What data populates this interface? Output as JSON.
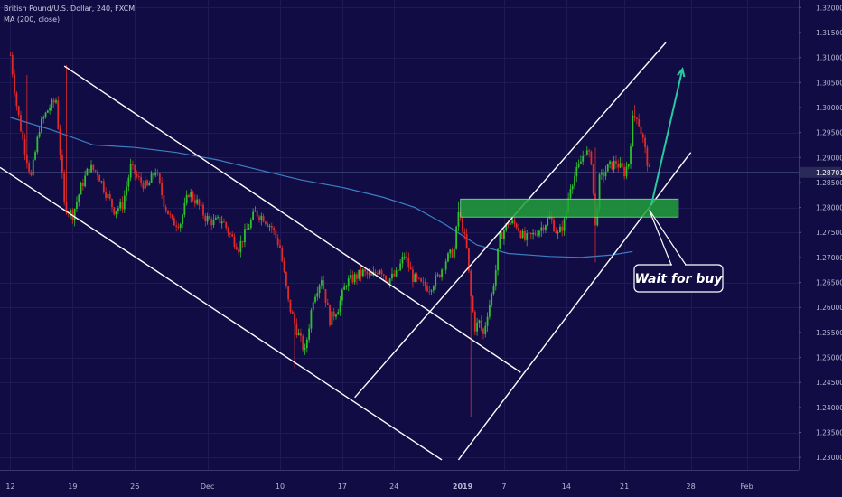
{
  "legend": {
    "symbol_line": "British Pound/U.S. Dollar, 240, FXCM",
    "indicator_line": "MA (200, close)"
  },
  "annotation": {
    "text": "Wait for buy"
  },
  "colors": {
    "background": "#120c44",
    "up_candle": "#2ec12e",
    "down_candle": "#e12a2a",
    "ma_line": "#3b7fc4",
    "trend_lines": "#ffffff",
    "zone_fill": "#22a13a",
    "arrow": "#28c9a0",
    "price_label_bg": "#2a2a5a",
    "axis_text": "#b9b8d6"
  },
  "chart_data": {
    "type": "candlestick",
    "symbol": "British Pound/U.S. Dollar",
    "timeframe": "240",
    "source": "FXCM",
    "current_price": 1.28701,
    "current_price_label": "1.28701",
    "y_axis": {
      "ticks": [
        "1.32000",
        "1.31500",
        "1.31000",
        "1.30500",
        "1.30000",
        "1.29500",
        "1.29000",
        "1.28500",
        "1.28000",
        "1.27500",
        "1.27000",
        "1.26500",
        "1.26000",
        "1.25500",
        "1.25000",
        "1.24500",
        "1.24000",
        "1.23500",
        "1.23000"
      ],
      "ylim": [
        1.2275,
        1.3215
      ]
    },
    "x_axis": {
      "ticks": [
        {
          "label": "12",
          "i": 0
        },
        {
          "label": "19",
          "i": 30
        },
        {
          "label": "26",
          "i": 60
        },
        {
          "label": "Dec",
          "i": 95
        },
        {
          "label": "10",
          "i": 130
        },
        {
          "label": "17",
          "i": 160
        },
        {
          "label": "24",
          "i": 185
        },
        {
          "label": "2019",
          "i": 218
        },
        {
          "label": "7",
          "i": 238
        },
        {
          "label": "14",
          "i": 268
        },
        {
          "label": "21",
          "i": 296
        },
        {
          "label": "28",
          "i": 328
        },
        {
          "label": "Feb",
          "i": 355
        }
      ],
      "xlim": [
        -5,
        380
      ]
    },
    "ohlc_anchors": [
      [
        0,
        1.3105
      ],
      [
        3,
        1.3005
      ],
      [
        6,
        1.2935
      ],
      [
        10,
        1.286
      ],
      [
        14,
        1.296
      ],
      [
        18,
        1.2995
      ],
      [
        22,
        1.3015
      ],
      [
        26,
        1.2805
      ],
      [
        30,
        1.2785
      ],
      [
        34,
        1.284
      ],
      [
        38,
        1.288
      ],
      [
        42,
        1.287
      ],
      [
        46,
        1.283
      ],
      [
        50,
        1.2795
      ],
      [
        54,
        1.2805
      ],
      [
        58,
        1.288
      ],
      [
        62,
        1.2855
      ],
      [
        66,
        1.284
      ],
      [
        70,
        1.2875
      ],
      [
        74,
        1.281
      ],
      [
        78,
        1.277
      ],
      [
        82,
        1.277
      ],
      [
        86,
        1.283
      ],
      [
        90,
        1.281
      ],
      [
        94,
        1.278
      ],
      [
        98,
        1.277
      ],
      [
        102,
        1.2775
      ],
      [
        106,
        1.2745
      ],
      [
        110,
        1.272
      ],
      [
        114,
        1.2755
      ],
      [
        118,
        1.279
      ],
      [
        122,
        1.278
      ],
      [
        126,
        1.276
      ],
      [
        130,
        1.272
      ],
      [
        134,
        1.261
      ],
      [
        138,
        1.2555
      ],
      [
        142,
        1.251
      ],
      [
        146,
        1.262
      ],
      [
        150,
        1.266
      ],
      [
        154,
        1.2575
      ],
      [
        158,
        1.26
      ],
      [
        162,
        1.265
      ],
      [
        166,
        1.266
      ],
      [
        170,
        1.267
      ],
      [
        174,
        1.266
      ],
      [
        178,
        1.268
      ],
      [
        182,
        1.2655
      ],
      [
        186,
        1.2665
      ],
      [
        190,
        1.2705
      ],
      [
        194,
        1.266
      ],
      [
        198,
        1.2645
      ],
      [
        202,
        1.264
      ],
      [
        206,
        1.266
      ],
      [
        210,
        1.2695
      ],
      [
        214,
        1.2715
      ],
      [
        216,
        1.279
      ],
      [
        218,
        1.276
      ],
      [
        220,
        1.2715
      ],
      [
        222,
        1.262
      ],
      [
        224,
        1.256
      ],
      [
        226,
        1.257
      ],
      [
        228,
        1.2545
      ],
      [
        230,
        1.259
      ],
      [
        232,
        1.2625
      ],
      [
        234,
        1.2675
      ],
      [
        236,
        1.274
      ],
      [
        240,
        1.277
      ],
      [
        244,
        1.2765
      ],
      [
        248,
        1.2735
      ],
      [
        252,
        1.2745
      ],
      [
        256,
        1.276
      ],
      [
        260,
        1.278
      ],
      [
        264,
        1.2745
      ],
      [
        267,
        1.277
      ],
      [
        270,
        1.2845
      ],
      [
        274,
        1.288
      ],
      [
        277,
        1.2915
      ],
      [
        280,
        1.2895
      ],
      [
        282,
        1.276
      ],
      [
        284,
        1.2855
      ],
      [
        288,
        1.288
      ],
      [
        292,
        1.289
      ],
      [
        296,
        1.287
      ],
      [
        298,
        1.289
      ],
      [
        300,
        1.2975
      ],
      [
        302,
        1.2985
      ],
      [
        305,
        1.2935
      ],
      [
        308,
        1.287
      ]
    ],
    "ohlc_spikes": [
      {
        "i": 8,
        "high": 1.3065
      },
      {
        "i": 27,
        "high": 1.3085
      },
      {
        "i": 137,
        "low": 1.2478
      },
      {
        "i": 216,
        "high": 1.2812
      },
      {
        "i": 222,
        "low": 1.238
      },
      {
        "i": 282,
        "low": 1.269
      },
      {
        "i": 282,
        "high": 1.292
      },
      {
        "i": 301,
        "high": 1.3005
      },
      {
        "i": 277,
        "low": 1.2855
      }
    ],
    "moving_average": {
      "name": "MA (200, close)",
      "points": [
        [
          0,
          1.298
        ],
        [
          20,
          1.2955
        ],
        [
          40,
          1.2925
        ],
        [
          60,
          1.292
        ],
        [
          80,
          1.291
        ],
        [
          100,
          1.2895
        ],
        [
          120,
          1.2875
        ],
        [
          140,
          1.2855
        ],
        [
          160,
          1.284
        ],
        [
          180,
          1.282
        ],
        [
          195,
          1.28
        ],
        [
          210,
          1.2765
        ],
        [
          225,
          1.2725
        ],
        [
          240,
          1.2708
        ],
        [
          260,
          1.2702
        ],
        [
          275,
          1.27
        ],
        [
          290,
          1.2705
        ],
        [
          300,
          1.2712
        ]
      ]
    },
    "drawings": {
      "descending_channel": [
        {
          "x1": 26,
          "y1": 1.3083,
          "x2": 246,
          "y2": 1.247
        },
        {
          "x1": -5,
          "y1": 1.288,
          "x2": 208,
          "y2": 1.2295
        }
      ],
      "ascending_channel": [
        {
          "x1": 166,
          "y1": 1.242,
          "x2": 316,
          "y2": 1.313
        },
        {
          "x1": 216,
          "y1": 1.2295,
          "x2": 328,
          "y2": 1.291
        }
      ],
      "support_zone": {
        "x1": 217,
        "x2": 322,
        "y_low": 1.2797,
        "y_high": 1.2815
      },
      "arrow": {
        "x1": 309,
        "y1": 1.2805,
        "x2": 324,
        "y2": 1.3077
      },
      "callout_pointer": {
        "x": 308,
        "y": 1.2795
      }
    }
  }
}
